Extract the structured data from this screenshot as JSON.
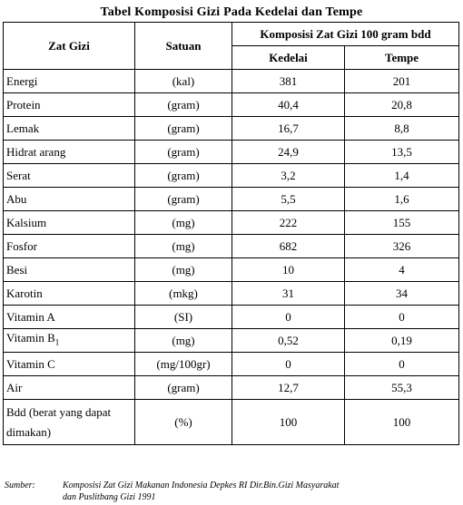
{
  "title": "Tabel Komposisi Gizi Pada Kedelai dan Tempe",
  "header": {
    "col_name": "Zat Gizi",
    "col_unit": "Satuan",
    "group": "Komposisi Zat Gizi 100 gram bdd",
    "col_a": "Kedelai",
    "col_b": "Tempe"
  },
  "rows": [
    {
      "name": "Energi",
      "unit": "(kal)",
      "kedelai": "381",
      "tempe": "201"
    },
    {
      "name": "Protein",
      "unit": "(gram)",
      "kedelai": "40,4",
      "tempe": "20,8"
    },
    {
      "name": "Lemak",
      "unit": "(gram)",
      "kedelai": "16,7",
      "tempe": "8,8"
    },
    {
      "name": "Hidrat arang",
      "unit": "(gram)",
      "kedelai": "24,9",
      "tempe": "13,5"
    },
    {
      "name": "Serat",
      "unit": "(gram)",
      "kedelai": "3,2",
      "tempe": "1,4"
    },
    {
      "name": "Abu",
      "unit": "(gram)",
      "kedelai": "5,5",
      "tempe": "1,6"
    },
    {
      "name": "Kalsium",
      "unit": "(mg)",
      "kedelai": "222",
      "tempe": "155"
    },
    {
      "name": "Fosfor",
      "unit": "(mg)",
      "kedelai": "682",
      "tempe": "326"
    },
    {
      "name": "Besi",
      "unit": "(mg)",
      "kedelai": "10",
      "tempe": "4"
    },
    {
      "name": "Karotin",
      "unit": "(mkg)",
      "kedelai": "31",
      "tempe": "34"
    },
    {
      "name": "Vitamin A",
      "unit": "(SI)",
      "kedelai": "0",
      "tempe": "0"
    },
    {
      "name": "Vitamin B",
      "name_sub": "1",
      "unit": "(mg)",
      "kedelai": "0,52",
      "tempe": "0,19"
    },
    {
      "name": "Vitamin C",
      "unit": "(mg/100gr)",
      "kedelai": "0",
      "tempe": "0"
    },
    {
      "name": "Air",
      "unit": "(gram)",
      "kedelai": "12,7",
      "tempe": "55,3"
    },
    {
      "name_line1": "Bdd (berat yang dapat",
      "name_line2": "dimakan)",
      "unit": "(%)",
      "kedelai": "100",
      "tempe": "100"
    }
  ],
  "source": {
    "label": "Sumber:",
    "line1": "Komposisi Zat Gizi Makanan Indonesia Depkes RI Dir.Bin.Gizi Masyarakat",
    "line2": "dan Puslitbang Gizi 1991"
  }
}
